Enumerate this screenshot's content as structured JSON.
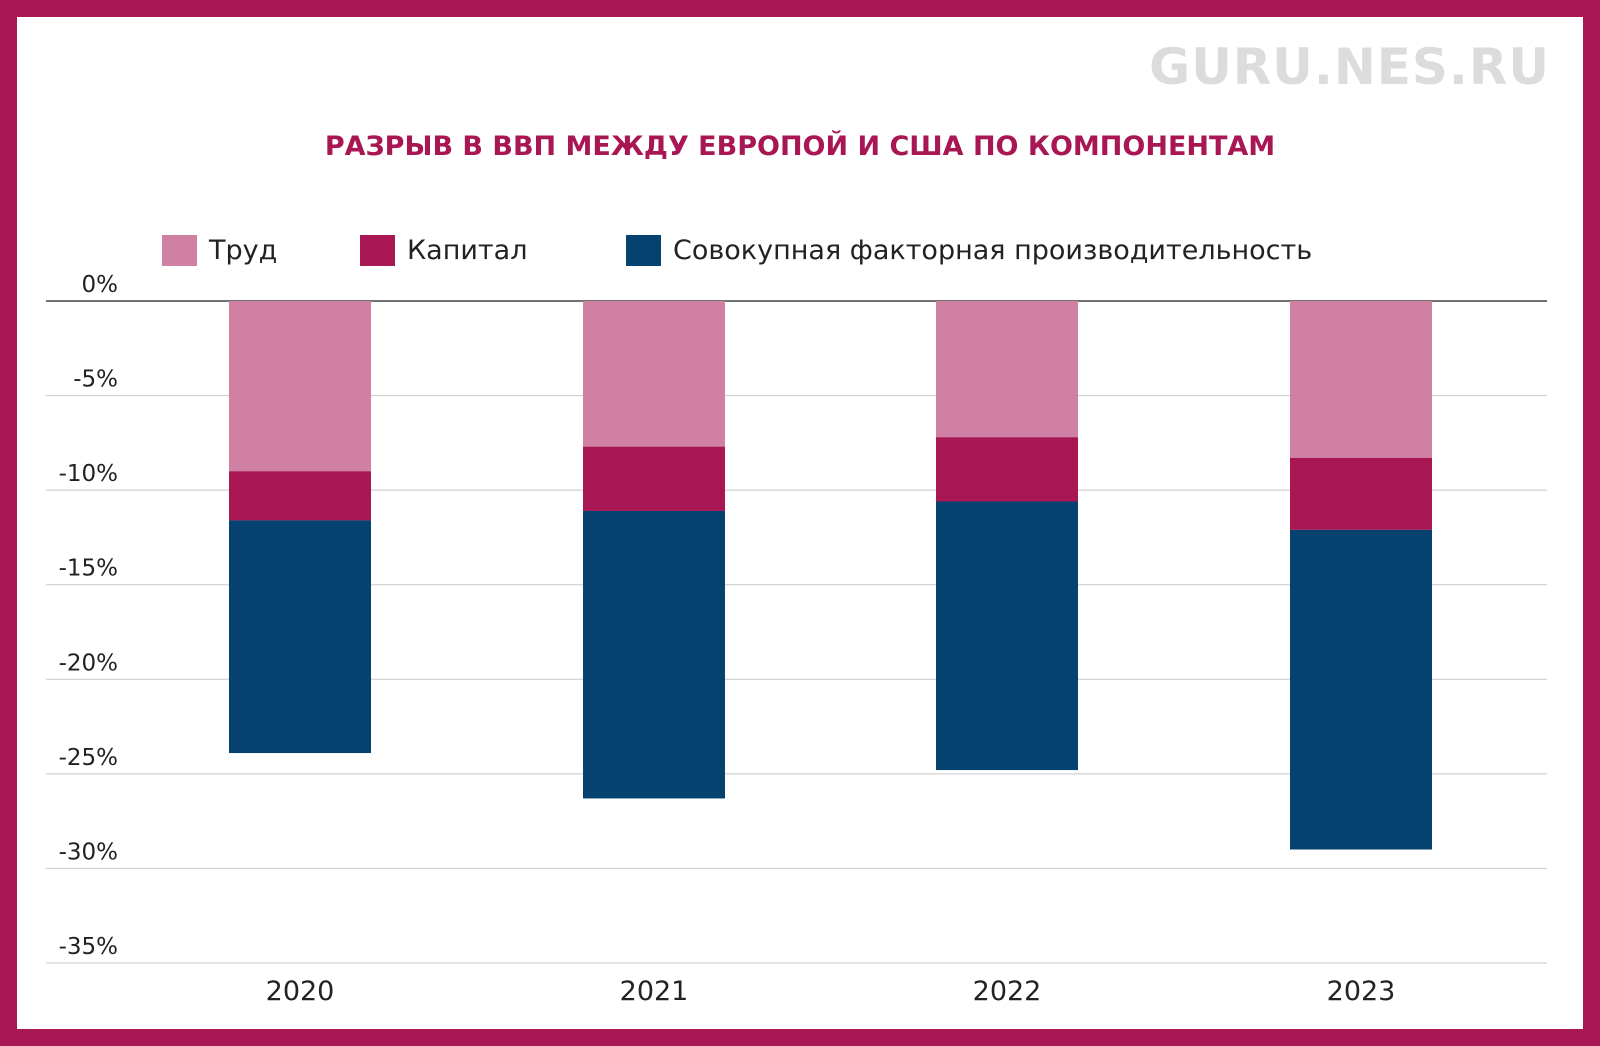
{
  "watermark": "GURU.NES.RU",
  "chart_data": {
    "type": "bar",
    "stacked": true,
    "title": "РАЗРЫВ В ВВП МЕЖДУ ЕВРОПОЙ И США ПО КОМПОНЕНТАМ",
    "xlabel": "",
    "ylabel": "",
    "categories": [
      "2020",
      "2021",
      "2022",
      "2023"
    ],
    "series": [
      {
        "name": "Труд",
        "color": "#d080a2",
        "values": [
          -9.0,
          -7.7,
          -7.2,
          -8.3
        ]
      },
      {
        "name": "Капитал",
        "color": "#a81654",
        "values": [
          -2.6,
          -3.4,
          -3.4,
          -3.8
        ]
      },
      {
        "name": "Совокупная факторная производительность",
        "color": "#06426f",
        "values": [
          -12.3,
          -15.2,
          -14.2,
          -16.9
        ]
      }
    ],
    "ylim": [
      -35,
      0
    ],
    "yticks": [
      0,
      -5,
      -10,
      -15,
      -20,
      -25,
      -30,
      -35
    ],
    "ytick_labels": [
      "0%",
      "-5%",
      "-10%",
      "-15%",
      "-20%",
      "-25%",
      "-30%",
      "-35%"
    ],
    "grid": true,
    "legend_position": "top"
  }
}
